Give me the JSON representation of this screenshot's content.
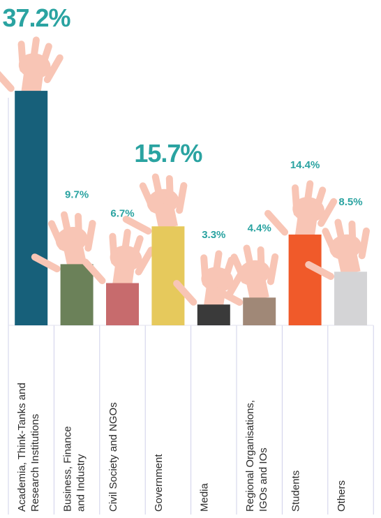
{
  "chart_data": {
    "type": "bar",
    "categories": [
      "Academia, Think-Tanks and\nResearch Institutions",
      "Business, Finance\nand Industry",
      "Civil Society and NGOs",
      "Government",
      "Media",
      "Regional Organisations,\nIGOs and IOs",
      "Students",
      "Others"
    ],
    "values": [
      37.2,
      9.7,
      6.7,
      15.7,
      3.3,
      4.4,
      14.4,
      8.5
    ],
    "value_labels": [
      "37.2%",
      "9.7%",
      "6.7%",
      "15.7%",
      "3.3%",
      "4.4%",
      "14.4%",
      "8.5%"
    ],
    "colors": [
      "#17607a",
      "#6b8159",
      "#c76b6d",
      "#e6c95c",
      "#3a3a3a",
      "#a08877",
      "#f05a2a",
      "#d4d4d6"
    ]
  }
}
